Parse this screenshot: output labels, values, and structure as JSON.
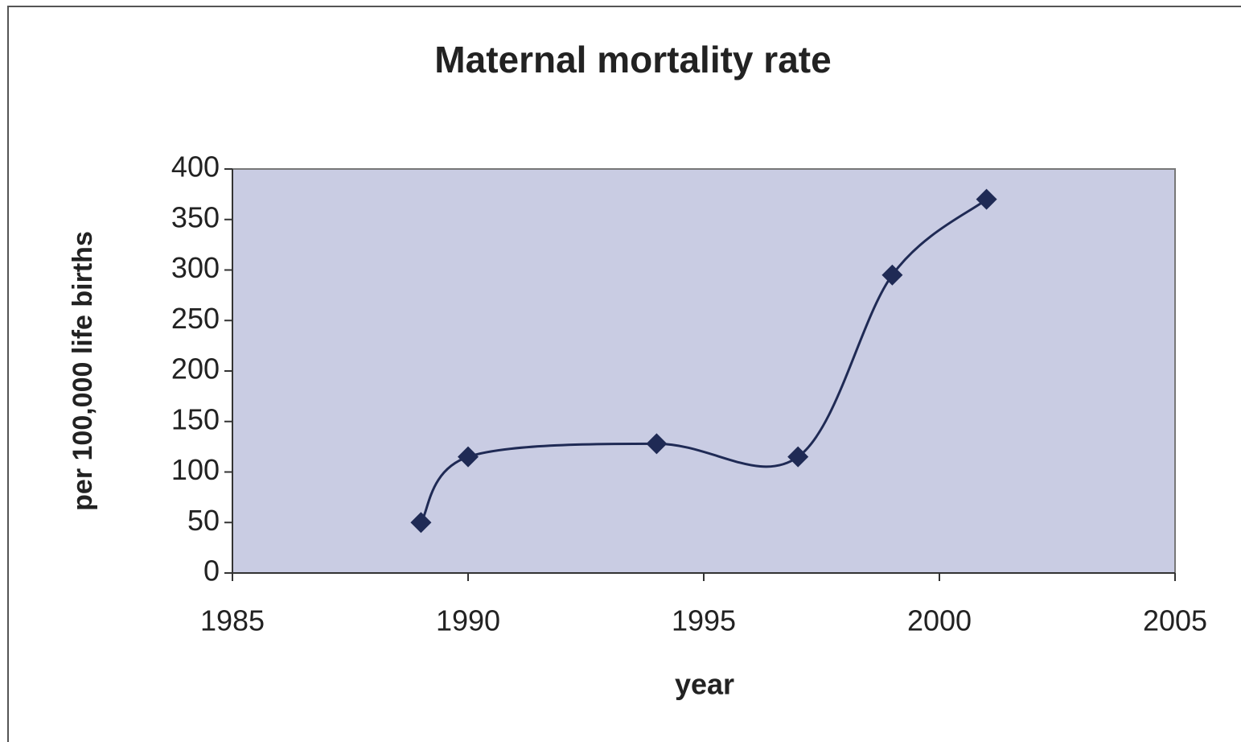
{
  "chart_data": {
    "type": "scatter",
    "title": "Maternal mortality rate",
    "xlabel": "year",
    "ylabel": "per 100,000 life births",
    "series": [
      {
        "name": "Maternal mortality rate",
        "color": "#1f2a55",
        "x": [
          1989,
          1990,
          1994,
          1997,
          1999,
          2001
        ],
        "values": [
          50,
          115,
          128,
          115,
          295,
          370
        ]
      }
    ],
    "xlim": [
      1985,
      2005
    ],
    "xticks": [
      1985,
      1990,
      1995,
      2000,
      2005
    ],
    "ylim": [
      0,
      400
    ],
    "yticks": [
      0,
      50,
      100,
      150,
      200,
      250,
      300,
      350,
      400
    ],
    "smooth": true,
    "plot_background": "#c9cce3"
  }
}
